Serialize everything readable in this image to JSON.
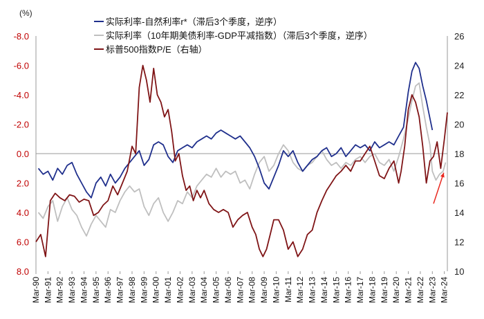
{
  "chart_data": {
    "type": "line",
    "unit_label": "(%)",
    "legend_position": "top-center",
    "grid": false,
    "left_axis": {
      "min": -8.0,
      "max": 8.0,
      "inverted": true,
      "ticks": [
        "-8.0",
        "-6.0",
        "-4.0",
        "-2.0",
        "0.0",
        "2.0",
        "4.0",
        "6.0",
        "8.0"
      ],
      "color": "#c00000"
    },
    "right_axis": {
      "min": 10,
      "max": 26,
      "ticks": [
        "26",
        "24",
        "22",
        "20",
        "18",
        "16",
        "14",
        "12",
        "10"
      ]
    },
    "x_range": [
      1990.0,
      2024.25
    ],
    "x_ticks": [
      "Mar-90",
      "Mar-91",
      "Mar-92",
      "Mar-93",
      "Mar-94",
      "Mar-95",
      "Mar-96",
      "Mar-97",
      "Mar-98",
      "Mar-99",
      "Mar-00",
      "Mar-01",
      "Mar-02",
      "Mar-03",
      "Mar-04",
      "Mar-05",
      "Mar-06",
      "Mar-07",
      "Mar-08",
      "Mar-09",
      "Mar-10",
      "Mar-11",
      "Mar-12",
      "Mar-13",
      "Mar-14",
      "Mar-15",
      "Mar-16",
      "Mar-17",
      "Mar-18",
      "Mar-19",
      "Mar-20",
      "Mar-21",
      "Mar-22",
      "Mar-23",
      "Mar-24"
    ],
    "series": [
      {
        "name": "实际利率-自然利率r*（滞后3个季度，逆序）",
        "axis": "left",
        "color": "#1f2f8c",
        "x": [
          1990.2,
          1990.6,
          1991.0,
          1991.4,
          1991.8,
          1992.2,
          1992.6,
          1993.0,
          1993.4,
          1993.8,
          1994.2,
          1994.6,
          1995.0,
          1995.4,
          1995.8,
          1996.2,
          1996.6,
          1997.0,
          1997.4,
          1997.8,
          1998.2,
          1998.6,
          1999.0,
          1999.4,
          1999.8,
          2000.2,
          2000.6,
          2001.0,
          2001.4,
          2001.8,
          2002.2,
          2002.6,
          2003.0,
          2003.4,
          2003.8,
          2004.2,
          2004.6,
          2005.0,
          2005.4,
          2005.8,
          2006.2,
          2006.6,
          2007.0,
          2007.4,
          2007.8,
          2008.2,
          2008.6,
          2009.0,
          2009.4,
          2009.8,
          2010.2,
          2010.6,
          2011.0,
          2011.4,
          2011.8,
          2012.2,
          2012.6,
          2013.0,
          2013.4,
          2013.8,
          2014.2,
          2014.6,
          2015.0,
          2015.4,
          2015.8,
          2016.2,
          2016.6,
          2017.0,
          2017.4,
          2017.8,
          2018.2,
          2018.6,
          2019.0,
          2019.4,
          2019.8,
          2020.2,
          2020.6,
          2021.0,
          2021.3,
          2021.6,
          2021.9,
          2022.2,
          2022.5,
          2022.8,
          2023.0
        ],
        "y": [
          1.0,
          1.4,
          1.2,
          1.8,
          1.0,
          1.4,
          0.8,
          0.6,
          1.4,
          2.0,
          2.6,
          3.0,
          2.0,
          1.6,
          2.2,
          1.4,
          2.0,
          1.6,
          1.0,
          0.6,
          0.2,
          -0.2,
          0.8,
          0.4,
          -0.6,
          -0.8,
          -0.6,
          0.2,
          0.6,
          -0.2,
          -0.4,
          -0.6,
          -0.4,
          -0.8,
          -1.0,
          -1.2,
          -1.0,
          -1.4,
          -1.6,
          -1.4,
          -1.2,
          -1.0,
          -1.2,
          -0.8,
          -0.4,
          0.2,
          1.0,
          2.0,
          2.4,
          1.6,
          0.8,
          -0.2,
          0.2,
          -0.2,
          0.6,
          1.2,
          0.8,
          0.4,
          0.2,
          -0.2,
          -0.4,
          0.2,
          0.0,
          -0.4,
          0.2,
          -0.2,
          -0.6,
          -0.4,
          -0.6,
          -0.2,
          -0.8,
          -0.4,
          -0.6,
          -0.8,
          -0.6,
          -1.2,
          -1.8,
          -4.2,
          -5.6,
          -6.2,
          -5.8,
          -4.6,
          -3.6,
          -2.4,
          -1.6
        ]
      },
      {
        "name": "实际利率（10年期美债利率-GDP平减指数）（滞后3个季度，逆序）",
        "axis": "left",
        "color": "#bfbfbf",
        "x": [
          1990.2,
          1990.6,
          1991.0,
          1991.4,
          1991.8,
          1992.2,
          1992.6,
          1993.0,
          1993.4,
          1993.8,
          1994.2,
          1994.6,
          1995.0,
          1995.4,
          1995.8,
          1996.2,
          1996.6,
          1997.0,
          1997.4,
          1997.8,
          1998.2,
          1998.6,
          1999.0,
          1999.4,
          1999.8,
          2000.2,
          2000.6,
          2001.0,
          2001.4,
          2001.8,
          2002.2,
          2002.6,
          2003.0,
          2003.4,
          2003.8,
          2004.2,
          2004.6,
          2005.0,
          2005.4,
          2005.8,
          2006.2,
          2006.6,
          2007.0,
          2007.4,
          2007.8,
          2008.2,
          2008.6,
          2009.0,
          2009.4,
          2009.8,
          2010.2,
          2010.6,
          2011.0,
          2011.4,
          2011.8,
          2012.2,
          2012.6,
          2013.0,
          2013.4,
          2013.8,
          2014.2,
          2014.6,
          2015.0,
          2015.4,
          2015.8,
          2016.2,
          2016.6,
          2017.0,
          2017.4,
          2017.8,
          2018.2,
          2018.6,
          2019.0,
          2019.4,
          2019.8,
          2020.2,
          2020.6,
          2021.0,
          2021.3,
          2021.6,
          2021.9,
          2022.2,
          2022.5,
          2022.8,
          2023.0,
          2023.3,
          2023.6,
          2023.9,
          2024.1
        ],
        "y": [
          4.0,
          4.4,
          3.6,
          3.2,
          4.6,
          3.6,
          3.0,
          3.8,
          4.2,
          5.0,
          5.6,
          4.8,
          4.2,
          4.6,
          5.0,
          3.8,
          4.0,
          3.2,
          2.6,
          2.2,
          2.6,
          2.4,
          3.6,
          4.2,
          3.4,
          3.0,
          4.0,
          4.6,
          4.0,
          3.2,
          3.4,
          2.6,
          3.0,
          2.2,
          1.8,
          1.4,
          1.6,
          1.0,
          1.6,
          1.2,
          1.4,
          1.2,
          2.0,
          1.8,
          2.4,
          1.4,
          0.6,
          0.2,
          1.2,
          0.8,
          0.0,
          -0.6,
          -0.2,
          0.6,
          1.0,
          1.2,
          0.8,
          0.6,
          0.2,
          -0.2,
          0.4,
          0.8,
          0.6,
          1.0,
          0.6,
          0.8,
          0.4,
          0.2,
          0.6,
          0.2,
          0.0,
          0.6,
          0.8,
          0.4,
          1.2,
          0.2,
          -1.0,
          -2.4,
          -3.6,
          -4.6,
          -4.8,
          -3.2,
          -1.8,
          -0.6,
          1.2,
          1.8,
          1.4,
          1.2,
          0.6
        ]
      },
      {
        "name": "标普500指数P/E（右轴）",
        "axis": "right",
        "color": "#7f1416",
        "x": [
          1990.0,
          1990.4,
          1990.8,
          1991.2,
          1991.6,
          1992.0,
          1992.4,
          1992.8,
          1993.2,
          1993.6,
          1994.0,
          1994.4,
          1994.8,
          1995.2,
          1995.6,
          1996.0,
          1996.4,
          1996.8,
          1997.2,
          1997.6,
          1998.0,
          1998.3,
          1998.6,
          1998.9,
          1999.2,
          1999.5,
          1999.8,
          2000.1,
          2000.4,
          2000.7,
          2001.0,
          2001.3,
          2001.6,
          2001.9,
          2002.2,
          2002.5,
          2002.8,
          2003.1,
          2003.4,
          2003.7,
          2004.0,
          2004.4,
          2004.8,
          2005.2,
          2005.6,
          2006.0,
          2006.4,
          2006.8,
          2007.2,
          2007.6,
          2008.0,
          2008.3,
          2008.6,
          2008.9,
          2009.2,
          2009.5,
          2009.8,
          2010.2,
          2010.6,
          2011.0,
          2011.4,
          2011.8,
          2012.2,
          2012.6,
          2013.0,
          2013.4,
          2013.8,
          2014.2,
          2014.6,
          2015.0,
          2015.4,
          2015.8,
          2016.2,
          2016.6,
          2017.0,
          2017.4,
          2017.8,
          2018.2,
          2018.6,
          2019.0,
          2019.4,
          2019.8,
          2020.2,
          2020.4,
          2020.7,
          2021.0,
          2021.3,
          2021.6,
          2021.9,
          2022.2,
          2022.5,
          2022.8,
          2023.1,
          2023.4,
          2023.7,
          2024.0,
          2024.25
        ],
        "y": [
          12.0,
          12.5,
          11.0,
          14.8,
          15.3,
          15.0,
          14.8,
          15.2,
          15.1,
          14.7,
          14.9,
          14.8,
          13.8,
          14.0,
          14.5,
          14.8,
          15.8,
          15.2,
          16.0,
          16.8,
          18.5,
          18.0,
          22.5,
          24.0,
          23.0,
          21.5,
          23.8,
          22.0,
          21.5,
          20.5,
          21.0,
          19.5,
          17.5,
          18.0,
          16.5,
          15.5,
          15.8,
          14.8,
          15.5,
          15.0,
          15.5,
          14.6,
          14.2,
          14.0,
          14.2,
          14.0,
          13.0,
          13.5,
          13.8,
          14.0,
          13.0,
          12.5,
          11.5,
          11.0,
          11.5,
          12.5,
          13.5,
          13.5,
          12.8,
          11.5,
          12.0,
          11.0,
          11.5,
          12.5,
          12.8,
          14.0,
          14.8,
          15.5,
          16.0,
          16.5,
          16.8,
          17.2,
          16.8,
          17.5,
          17.5,
          18.0,
          18.5,
          17.5,
          16.5,
          16.3,
          17.0,
          17.5,
          16.0,
          16.8,
          18.5,
          21.0,
          22.0,
          21.5,
          20.5,
          18.5,
          16.0,
          17.5,
          17.8,
          18.8,
          17.0,
          19.0,
          20.8
        ]
      }
    ]
  }
}
